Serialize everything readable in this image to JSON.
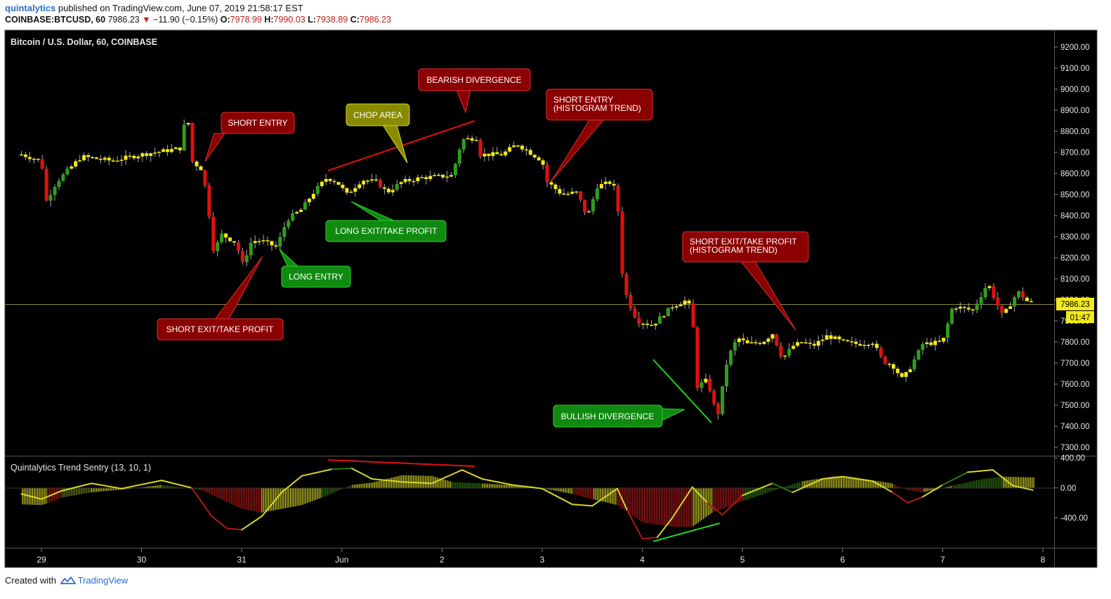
{
  "header": {
    "author": "quintalytics",
    "published": "published on TradingView.com, June 07, 2019 21:58:17 EST",
    "symbol": "COINBASE:BTCUSD, 60",
    "last": "7986.23",
    "change": "−11.90 (−0.15%)",
    "o_label": "O:",
    "o_val": "7978.99",
    "h_label": "H:",
    "h_val": "7990.03",
    "l_label": "L:",
    "l_val": "7938.89",
    "c_label": "C:",
    "c_val": "7986.23"
  },
  "footer": {
    "created_with": "Created with",
    "brand": "TradingView"
  },
  "price_pane": {
    "title": "Bitcoin / U.S. Dollar, 60, COINBASE"
  },
  "indicator_pane": {
    "title": "Quintalytics Trend Sentry (13, 10, 1)"
  },
  "price_badge": {
    "value": "7986.23",
    "countdown": "01:47"
  },
  "colors": {
    "background": "#000000",
    "bull_candle": "#2e9e1c",
    "bear_candle": "#e01010",
    "neutral_candle": "#f2ea1a",
    "label_red": "#8b0000",
    "label_green": "#108a10",
    "label_yellow": "#8a8a00"
  },
  "annotations": {
    "short_entry_1": "SHORT ENTRY",
    "short_exit_1": "SHORT EXIT/TAKE PROFIT",
    "long_entry": "LONG ENTRY",
    "long_exit": "LONG EXIT/TAKE PROFIT",
    "chop_area": "CHOP AREA",
    "bearish_div": "BEARISH DIVERGENCE",
    "short_entry_2_l1": "SHORT ENTRY",
    "short_entry_2_l2": "(HISTOGRAM TREND)",
    "short_exit_2_l1": "SHORT EXIT/TAKE PROFIT",
    "short_exit_2_l2": "(HISTOGRAM TREND)",
    "bullish_div": "BULLISH DIVERGENCE"
  },
  "chart_data": [
    {
      "type": "candlestick",
      "title": "Bitcoin / U.S. Dollar, 60, COINBASE",
      "x_ticks": [
        "29",
        "30",
        "31",
        "Jun",
        "2",
        "3",
        "4",
        "5",
        "6",
        "7",
        "8"
      ],
      "y_ticks": [
        "9200.00",
        "9100.00",
        "9000.00",
        "8900.00",
        "8800.00",
        "8700.00",
        "8600.00",
        "8500.00",
        "8400.00",
        "8300.00",
        "8200.00",
        "8100.00",
        "8000.00",
        "7900.00",
        "7800.00",
        "7700.00",
        "7600.00",
        "7500.00",
        "7400.00",
        "7300.00"
      ],
      "ylim": [
        7260,
        9280
      ],
      "last_price": 7986.23,
      "close_path": [
        {
          "d": 28.8,
          "p": 8690
        },
        {
          "d": 29.0,
          "p": 8660
        },
        {
          "d": 29.05,
          "p": 8470
        },
        {
          "d": 29.15,
          "p": 8560
        },
        {
          "d": 29.4,
          "p": 8680
        },
        {
          "d": 29.7,
          "p": 8660
        },
        {
          "d": 30.0,
          "p": 8690
        },
        {
          "d": 30.4,
          "p": 8720
        },
        {
          "d": 30.45,
          "p": 8930
        },
        {
          "d": 30.5,
          "p": 8660
        },
        {
          "d": 30.6,
          "p": 8620
        },
        {
          "d": 30.65,
          "p": 8500
        },
        {
          "d": 30.72,
          "p": 8230
        },
        {
          "d": 30.8,
          "p": 8310
        },
        {
          "d": 30.95,
          "p": 8270
        },
        {
          "d": 31.0,
          "p": 8160
        },
        {
          "d": 31.1,
          "p": 8280
        },
        {
          "d": 31.2,
          "p": 8280
        },
        {
          "d": 31.35,
          "p": 8250
        },
        {
          "d": 31.45,
          "p": 8380
        },
        {
          "d": 31.6,
          "p": 8430
        },
        {
          "d": 31.7,
          "p": 8500
        },
        {
          "d": 31.85,
          "p": 8580
        },
        {
          "d": 31.95,
          "p": 8560
        },
        {
          "d": 32.05,
          "p": 8500
        },
        {
          "d": 32.2,
          "p": 8570
        },
        {
          "d": 32.35,
          "p": 8560
        },
        {
          "d": 32.45,
          "p": 8510
        },
        {
          "d": 32.6,
          "p": 8560
        },
        {
          "d": 32.8,
          "p": 8580
        },
        {
          "d": 33.1,
          "p": 8590
        },
        {
          "d": 33.2,
          "p": 8760
        },
        {
          "d": 33.35,
          "p": 8770
        },
        {
          "d": 33.38,
          "p": 8690
        },
        {
          "d": 33.6,
          "p": 8690
        },
        {
          "d": 33.75,
          "p": 8740
        },
        {
          "d": 34.0,
          "p": 8660
        },
        {
          "d": 34.05,
          "p": 8560
        },
        {
          "d": 34.2,
          "p": 8500
        },
        {
          "d": 34.35,
          "p": 8510
        },
        {
          "d": 34.45,
          "p": 8390
        },
        {
          "d": 34.55,
          "p": 8540
        },
        {
          "d": 34.7,
          "p": 8560
        },
        {
          "d": 34.75,
          "p": 8480
        },
        {
          "d": 34.8,
          "p": 8130
        },
        {
          "d": 34.85,
          "p": 8000
        },
        {
          "d": 34.95,
          "p": 7900
        },
        {
          "d": 35.1,
          "p": 7880
        },
        {
          "d": 35.3,
          "p": 7970
        },
        {
          "d": 35.45,
          "p": 8000
        },
        {
          "d": 35.5,
          "p": 7920
        },
        {
          "d": 35.55,
          "p": 7590
        },
        {
          "d": 35.65,
          "p": 7620
        },
        {
          "d": 35.75,
          "p": 7440
        },
        {
          "d": 35.85,
          "p": 7720
        },
        {
          "d": 35.95,
          "p": 7820
        },
        {
          "d": 36.05,
          "p": 7790
        },
        {
          "d": 36.2,
          "p": 7800
        },
        {
          "d": 36.3,
          "p": 7840
        },
        {
          "d": 36.4,
          "p": 7720
        },
        {
          "d": 36.5,
          "p": 7780
        },
        {
          "d": 36.6,
          "p": 7800
        },
        {
          "d": 36.7,
          "p": 7780
        },
        {
          "d": 36.85,
          "p": 7830
        },
        {
          "d": 37.0,
          "p": 7800
        },
        {
          "d": 37.15,
          "p": 7790
        },
        {
          "d": 37.3,
          "p": 7800
        },
        {
          "d": 37.4,
          "p": 7710
        },
        {
          "d": 37.5,
          "p": 7690
        },
        {
          "d": 37.6,
          "p": 7620
        },
        {
          "d": 37.7,
          "p": 7700
        },
        {
          "d": 37.8,
          "p": 7790
        },
        {
          "d": 38.0,
          "p": 7800
        },
        {
          "d": 38.1,
          "p": 7970
        },
        {
          "d": 38.3,
          "p": 7950
        },
        {
          "d": 38.45,
          "p": 8080
        },
        {
          "d": 38.6,
          "p": 7920
        },
        {
          "d": 38.75,
          "p": 8040
        },
        {
          "d": 38.85,
          "p": 7990
        },
        {
          "d": 38.92,
          "p": 7986
        }
      ]
    },
    {
      "type": "histogram",
      "title": "Quintalytics Trend Sentry (13, 10, 1)",
      "y_ticks": [
        "400.00",
        "0.00",
        "-400.00"
      ],
      "ylim": [
        -800,
        420
      ],
      "histogram": [
        {
          "d": 28.8,
          "v": -220,
          "c": "#d6d62a"
        },
        {
          "d": 29.0,
          "v": -230,
          "c": "#d6d62a"
        },
        {
          "d": 29.05,
          "v": -210,
          "c": "#b01818"
        },
        {
          "d": 29.2,
          "v": -130,
          "c": "#6f8a1b"
        },
        {
          "d": 29.5,
          "v": -60,
          "c": "#d6d62a"
        },
        {
          "d": 29.9,
          "v": -10,
          "c": "#d6d62a"
        },
        {
          "d": 30.2,
          "v": 40,
          "c": "#2f7a12"
        },
        {
          "d": 30.6,
          "v": -30,
          "c": "#b01818"
        },
        {
          "d": 31.0,
          "v": -280,
          "c": "#b01818"
        },
        {
          "d": 31.2,
          "v": -330,
          "c": "#d6d62a"
        },
        {
          "d": 31.6,
          "v": -230,
          "c": "#d6d62a"
        },
        {
          "d": 31.8,
          "v": -130,
          "c": "#2f7a12"
        },
        {
          "d": 32.1,
          "v": 40,
          "c": "#d6d62a"
        },
        {
          "d": 32.3,
          "v": 70,
          "c": "#d6d62a"
        },
        {
          "d": 32.6,
          "v": 170,
          "c": "#d6d62a"
        },
        {
          "d": 32.9,
          "v": 160,
          "c": "#d6d62a"
        },
        {
          "d": 33.1,
          "v": 80,
          "c": "#2f7a12"
        },
        {
          "d": 33.4,
          "v": 60,
          "c": "#d6d62a"
        },
        {
          "d": 33.9,
          "v": 20,
          "c": "#d6d62a"
        },
        {
          "d": 34.3,
          "v": -80,
          "c": "#b01818"
        },
        {
          "d": 34.5,
          "v": -150,
          "c": "#d6d62a"
        },
        {
          "d": 34.75,
          "v": -230,
          "c": "#b01818"
        },
        {
          "d": 35.0,
          "v": -460,
          "c": "#b01818"
        },
        {
          "d": 35.3,
          "v": -520,
          "c": "#b01818"
        },
        {
          "d": 35.5,
          "v": -520,
          "c": "#d6d62a"
        },
        {
          "d": 35.7,
          "v": -330,
          "c": "#b01818"
        },
        {
          "d": 36.0,
          "v": -180,
          "c": "#2f7a12"
        },
        {
          "d": 36.3,
          "v": -40,
          "c": "#2f7a12"
        },
        {
          "d": 36.6,
          "v": 90,
          "c": "#d6d62a"
        },
        {
          "d": 36.9,
          "v": 150,
          "c": "#d6d62a"
        },
        {
          "d": 37.0,
          "v": 160,
          "c": "#d6d62a"
        },
        {
          "d": 37.3,
          "v": 100,
          "c": "#d6d62a"
        },
        {
          "d": 37.5,
          "v": 60,
          "c": "#b01818"
        },
        {
          "d": 37.65,
          "v": -30,
          "c": "#b01818"
        },
        {
          "d": 37.8,
          "v": -60,
          "c": "#d6d62a"
        },
        {
          "d": 38.1,
          "v": 30,
          "c": "#2f7a12"
        },
        {
          "d": 38.4,
          "v": 120,
          "c": "#2f7a12"
        },
        {
          "d": 38.6,
          "v": 150,
          "c": "#d6d62a"
        },
        {
          "d": 38.92,
          "v": 140,
          "c": "#d6d62a"
        }
      ],
      "signal_line": [
        {
          "d": 28.8,
          "v": -80,
          "c": "#d6d62a"
        },
        {
          "d": 29.0,
          "v": -150,
          "c": "#d6d62a"
        },
        {
          "d": 29.2,
          "v": -40,
          "c": "#d6d62a"
        },
        {
          "d": 29.5,
          "v": 60,
          "c": "#d6d62a"
        },
        {
          "d": 29.8,
          "v": -10,
          "c": "#d6d62a"
        },
        {
          "d": 30.2,
          "v": 100,
          "c": "#d6d62a"
        },
        {
          "d": 30.5,
          "v": 0,
          "c": "#b01818"
        },
        {
          "d": 30.7,
          "v": -380,
          "c": "#b01818"
        },
        {
          "d": 30.85,
          "v": -540,
          "c": "#b01818"
        },
        {
          "d": 31.0,
          "v": -560,
          "c": "#d6d62a"
        },
        {
          "d": 31.2,
          "v": -380,
          "c": "#d6d62a"
        },
        {
          "d": 31.4,
          "v": -60,
          "c": "#d6d62a"
        },
        {
          "d": 31.6,
          "v": 160,
          "c": "#d6d62a"
        },
        {
          "d": 31.9,
          "v": 250,
          "c": "#2f7a12"
        },
        {
          "d": 32.1,
          "v": 260,
          "c": "#d6d62a"
        },
        {
          "d": 32.3,
          "v": 120,
          "c": "#d6d62a"
        },
        {
          "d": 32.6,
          "v": 80,
          "c": "#d6d62a"
        },
        {
          "d": 32.9,
          "v": 60,
          "c": "#d6d62a"
        },
        {
          "d": 33.2,
          "v": 240,
          "c": "#d6d62a"
        },
        {
          "d": 33.4,
          "v": 120,
          "c": "#d6d62a"
        },
        {
          "d": 33.7,
          "v": 40,
          "c": "#d6d62a"
        },
        {
          "d": 34.0,
          "v": -10,
          "c": "#d6d62a"
        },
        {
          "d": 34.3,
          "v": -220,
          "c": "#d6d62a"
        },
        {
          "d": 34.5,
          "v": -240,
          "c": "#d6d62a"
        },
        {
          "d": 34.75,
          "v": -10,
          "c": "#d6d62a"
        },
        {
          "d": 34.85,
          "v": -300,
          "c": "#b01818"
        },
        {
          "d": 35.0,
          "v": -680,
          "c": "#b01818"
        },
        {
          "d": 35.15,
          "v": -660,
          "c": "#d6d62a"
        },
        {
          "d": 35.3,
          "v": -400,
          "c": "#d6d62a"
        },
        {
          "d": 35.5,
          "v": 10,
          "c": "#d6d62a"
        },
        {
          "d": 35.65,
          "v": -200,
          "c": "#b01818"
        },
        {
          "d": 35.8,
          "v": -360,
          "c": "#b01818"
        },
        {
          "d": 36.0,
          "v": -100,
          "c": "#d6d62a"
        },
        {
          "d": 36.3,
          "v": 60,
          "c": "#2f7a12"
        },
        {
          "d": 36.5,
          "v": -60,
          "c": "#d6d62a"
        },
        {
          "d": 36.8,
          "v": 120,
          "c": "#d6d62a"
        },
        {
          "d": 37.0,
          "v": 150,
          "c": "#d6d62a"
        },
        {
          "d": 37.3,
          "v": 90,
          "c": "#d6d62a"
        },
        {
          "d": 37.5,
          "v": -60,
          "c": "#b01818"
        },
        {
          "d": 37.65,
          "v": -200,
          "c": "#b01818"
        },
        {
          "d": 37.8,
          "v": -120,
          "c": "#d6d62a"
        },
        {
          "d": 38.0,
          "v": 40,
          "c": "#2f7a12"
        },
        {
          "d": 38.25,
          "v": 210,
          "c": "#d6d62a"
        },
        {
          "d": 38.5,
          "v": 240,
          "c": "#d6d62a"
        },
        {
          "d": 38.7,
          "v": 30,
          "c": "#d6d62a"
        },
        {
          "d": 38.9,
          "v": -30,
          "c": "#d6d62a"
        }
      ]
    }
  ]
}
